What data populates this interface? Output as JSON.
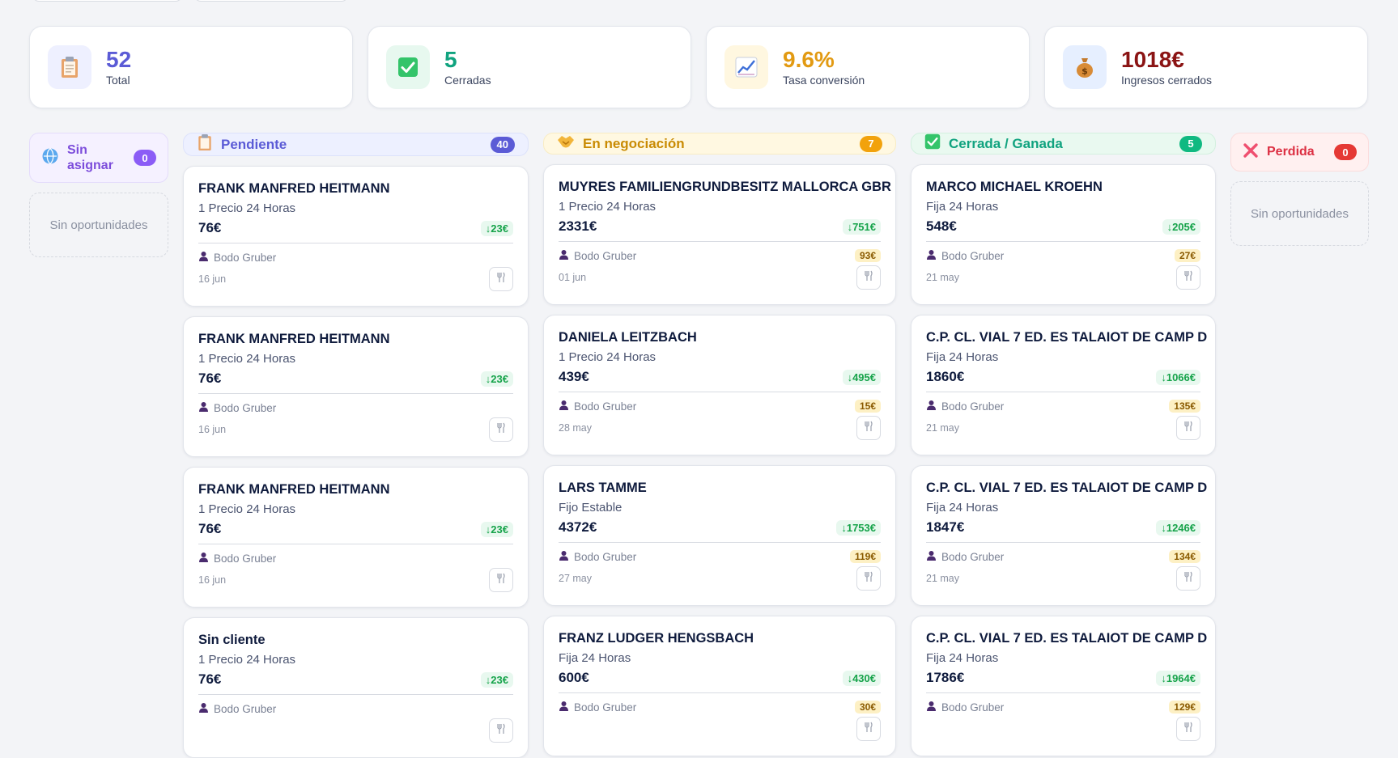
{
  "stats": [
    {
      "value": "52",
      "label": "Total",
      "icon": "clipboard-icon",
      "color": "#5b5bd6",
      "bg": "#eef0ff"
    },
    {
      "value": "5",
      "label": "Cerradas",
      "icon": "check-icon",
      "color": "#10a37f",
      "bg": "#e7f8ef"
    },
    {
      "value": "9.6%",
      "label": "Tasa conversión",
      "icon": "chart-icon",
      "color": "#e29a12",
      "bg": "#fff7e0"
    },
    {
      "value": "1018€",
      "label": "Ingresos cerrados",
      "icon": "money-bag-icon",
      "color": "#8b1414",
      "bg": "#e6efff"
    }
  ],
  "columns": {
    "unassigned": {
      "title_line1": "Sin",
      "title_line2": "asignar",
      "count": "0",
      "empty": "Sin oportunidades"
    },
    "pending": {
      "title": "Pendiente",
      "count": "40"
    },
    "negotiation": {
      "title": "En negociación",
      "count": "7"
    },
    "won": {
      "title": "Cerrada / Ganada",
      "count": "5"
    },
    "lost": {
      "title": "Perdida",
      "count": "0",
      "empty": "Sin oportunidades"
    }
  },
  "cards": {
    "pending": [
      {
        "name": "FRANK MANFRED HEITMANN",
        "plan": "1 Precio 24 Horas",
        "price": "76€",
        "saving": "↓23€",
        "owner": "Bodo Gruber",
        "date": "16 jun"
      },
      {
        "name": "FRANK MANFRED HEITMANN",
        "plan": "1 Precio 24 Horas",
        "price": "76€",
        "saving": "↓23€",
        "owner": "Bodo Gruber",
        "date": "16 jun"
      },
      {
        "name": "FRANK MANFRED HEITMANN",
        "plan": "1 Precio 24 Horas",
        "price": "76€",
        "saving": "↓23€",
        "owner": "Bodo Gruber",
        "date": "16 jun"
      },
      {
        "name": "Sin cliente",
        "plan": "1 Precio 24 Horas",
        "price": "76€",
        "saving": "↓23€",
        "owner": "Bodo Gruber",
        "date": ""
      }
    ],
    "negotiation": [
      {
        "name": "MUYRES FAMILIENGRUNDBESITZ MALLORCA GBR",
        "plan": "1 Precio 24 Horas",
        "price": "2331€",
        "saving": "↓751€",
        "owner": "Bodo Gruber",
        "commission": "93€",
        "date": "01 jun"
      },
      {
        "name": "DANIELA LEITZBACH",
        "plan": "1 Precio 24 Horas",
        "price": "439€",
        "saving": "↓495€",
        "owner": "Bodo Gruber",
        "commission": "15€",
        "date": "28 may"
      },
      {
        "name": "LARS TAMME",
        "plan": "Fijo Estable",
        "price": "4372€",
        "saving": "↓1753€",
        "owner": "Bodo Gruber",
        "commission": "119€",
        "date": "27 may"
      },
      {
        "name": "FRANZ LUDGER HENGSBACH",
        "plan": "Fija 24 Horas",
        "price": "600€",
        "saving": "↓430€",
        "owner": "Bodo Gruber",
        "commission": "30€",
        "date": ""
      }
    ],
    "won": [
      {
        "name": "MARCO MICHAEL KROEHN",
        "plan": "Fija 24 Horas",
        "price": "548€",
        "saving": "↓205€",
        "owner": "Bodo Gruber",
        "commission": "27€",
        "date": "21 may"
      },
      {
        "name": "C.P. CL. VIAL 7 ED. ES TALAIOT DE CAMP D",
        "plan": "Fija 24 Horas",
        "price": "1860€",
        "saving": "↓1066€",
        "owner": "Bodo Gruber",
        "commission": "135€",
        "date": "21 may"
      },
      {
        "name": "C.P. CL. VIAL 7 ED. ES TALAIOT DE CAMP D",
        "plan": "Fija 24 Horas",
        "price": "1847€",
        "saving": "↓1246€",
        "owner": "Bodo Gruber",
        "commission": "134€",
        "date": "21 may"
      },
      {
        "name": "C.P. CL. VIAL 7 ED. ES TALAIOT DE CAMP D",
        "plan": "Fija 24 Horas",
        "price": "1786€",
        "saving": "↓1964€",
        "owner": "Bodo Gruber",
        "commission": "129€",
        "date": ""
      }
    ]
  }
}
